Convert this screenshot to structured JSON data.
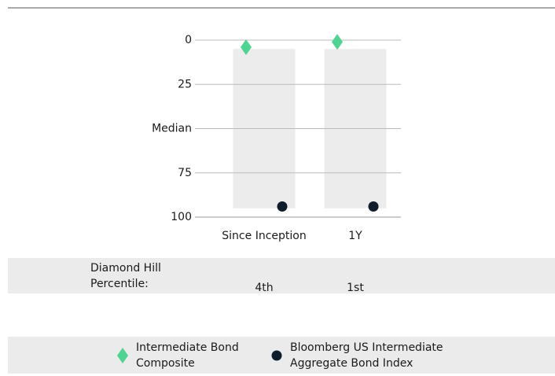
{
  "chart_data": {
    "type": "percentile",
    "categories": [
      "Since Inception",
      "1Y"
    ],
    "ranges": [
      [
        5,
        95
      ],
      [
        5,
        95
      ]
    ],
    "range_color": "#ececec",
    "series": [
      {
        "name": "Intermediate Bond Composite",
        "marker": "diamond",
        "color": "#4cd490",
        "values": [
          4,
          1
        ]
      },
      {
        "name": "Bloomberg US Intermediate Aggregate Bond Index",
        "marker": "circle",
        "color": "#0f1c2b",
        "values": [
          94,
          94
        ]
      }
    ],
    "ylim": [
      0,
      100
    ],
    "inverted": true,
    "yticks": [
      0,
      25,
      {
        "value": 50,
        "label": "Median"
      },
      75,
      100
    ],
    "grid": true
  },
  "percentile_table": {
    "label": "Diamond Hill Percentile:",
    "values": [
      "4th",
      "1st"
    ]
  }
}
